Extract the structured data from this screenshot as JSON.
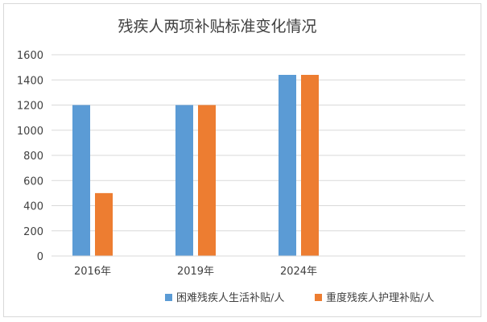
{
  "chart_data": {
    "type": "bar",
    "title": "残疾人两项补贴标准变化情况",
    "xlabel": "",
    "ylabel": "",
    "categories": [
      "2016年",
      "2019年",
      "2024年"
    ],
    "series": [
      {
        "name": "困难残疾人生活补贴/人",
        "color": "#5b9bd5",
        "values": [
          1200,
          1200,
          1440
        ]
      },
      {
        "name": "重度残疾人护理补贴/人",
        "color": "#ed7d31",
        "values": [
          500,
          1200,
          1440
        ]
      }
    ],
    "ylim": [
      0,
      1600
    ],
    "yticks": [
      "0",
      "200",
      "400",
      "600",
      "800",
      "1000",
      "1200",
      "1400",
      "1600"
    ],
    "grid": true,
    "legend_position": "bottom-right"
  }
}
